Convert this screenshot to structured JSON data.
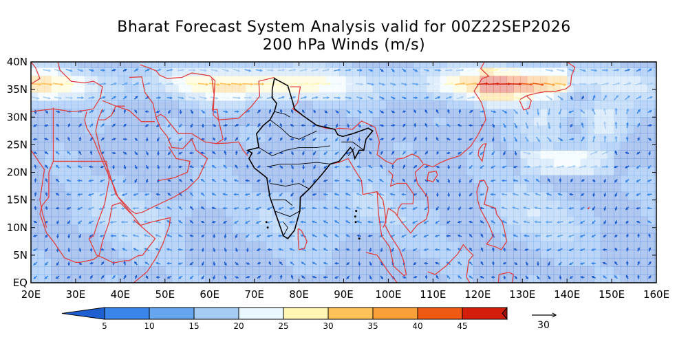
{
  "title": {
    "line1": "Bharat Forecast System Analysis valid for 00Z22SEP2026",
    "line2": "200 hPa Winds (m/s)"
  },
  "map": {
    "lon_range": [
      20,
      160
    ],
    "lat_range": [
      0,
      40
    ],
    "lon_ticks": [
      "20E",
      "30E",
      "40E",
      "50E",
      "60E",
      "70E",
      "80E",
      "90E",
      "100E",
      "110E",
      "120E",
      "130E",
      "140E",
      "150E",
      "160E"
    ],
    "lat_ticks": [
      "EQ",
      "5N",
      "10N",
      "15N",
      "20N",
      "25N",
      "30N",
      "35N",
      "40N"
    ],
    "country_border_color": "#e04040",
    "india_border_color": "#000000",
    "jet_axis_lat": 36,
    "anticyclone_center": {
      "lon": 142,
      "lat": 29
    }
  },
  "colorbar": {
    "labels": [
      "5",
      "10",
      "15",
      "20",
      "25",
      "30",
      "35",
      "40",
      "45"
    ],
    "colors": [
      "#1e5fd2",
      "#3a86e8",
      "#66a6ee",
      "#a6ccf4",
      "#e9f7ff",
      "#fff6b4",
      "#fdc25a",
      "#f9a03a",
      "#ee5a14",
      "#d21e0a",
      "#9e0f05"
    ]
  },
  "reference_vector": {
    "label": "30"
  }
}
